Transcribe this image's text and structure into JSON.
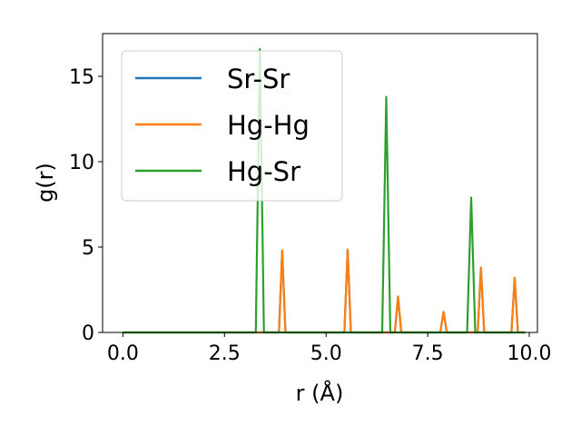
{
  "chart_data": {
    "type": "line",
    "title": "",
    "xlabel": "r (Å)",
    "ylabel": "g(r)",
    "xlim": [
      -0.5,
      10.2
    ],
    "ylim": [
      0,
      17.5
    ],
    "xticks": [
      0.0,
      2.5,
      5.0,
      7.5,
      10.0
    ],
    "xtick_labels": [
      "0.0",
      "2.5",
      "5.0",
      "7.5",
      "10.0"
    ],
    "yticks": [
      0,
      5,
      10,
      15
    ],
    "ytick_labels": [
      "0",
      "5",
      "10",
      "15"
    ],
    "grid": false,
    "legend_position": "upper-left",
    "series": [
      {
        "name": "Sr-Sr",
        "color": "#1f77b4",
        "x": [
          0.0,
          3.84,
          3.92,
          4.0,
          5.45,
          5.53,
          5.61,
          6.69,
          6.77,
          6.85,
          7.81,
          7.89,
          7.97,
          8.73,
          8.81,
          8.89,
          9.56,
          9.64,
          9.72,
          9.9
        ],
        "y": [
          0,
          0,
          4.8,
          0,
          0,
          4.85,
          0,
          0,
          2.1,
          0,
          0,
          1.2,
          0,
          0,
          3.8,
          0,
          0,
          3.2,
          0,
          0
        ]
      },
      {
        "name": "Hg-Hg",
        "color": "#ff7f0e",
        "x": [
          0.0,
          3.84,
          3.92,
          4.0,
          5.45,
          5.53,
          5.61,
          6.69,
          6.77,
          6.85,
          7.81,
          7.89,
          7.97,
          8.73,
          8.81,
          8.89,
          9.56,
          9.64,
          9.72,
          9.9
        ],
        "y": [
          0,
          0,
          4.8,
          0,
          0,
          4.85,
          0,
          0,
          2.1,
          0,
          0,
          1.2,
          0,
          0,
          3.8,
          0,
          0,
          3.2,
          0,
          0
        ]
      },
      {
        "name": "Hg-Sr",
        "color": "#2ca02c",
        "x": [
          0.0,
          3.27,
          3.37,
          3.47,
          6.38,
          6.48,
          6.58,
          8.47,
          8.57,
          8.67,
          9.9
        ],
        "y": [
          0,
          0,
          16.6,
          0,
          0,
          13.8,
          0,
          0,
          7.9,
          0,
          0
        ]
      }
    ]
  }
}
